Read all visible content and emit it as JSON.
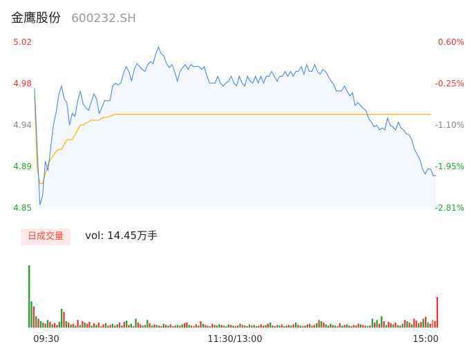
{
  "header": {
    "stock_name": "金鹰股份",
    "stock_code": "600232.SH"
  },
  "volume_panel": {
    "badge": "日成交量",
    "summary": "vol: 14.45万手"
  },
  "colors": {
    "price_line": "#4d88f0",
    "avg_line": "#f7b500",
    "up": "#e83a3a",
    "down": "#2aa135",
    "neutral": "#888888",
    "area_fill": "#f4f7fd"
  },
  "chart_data": [
    {
      "type": "line",
      "ylim": [
        4.85,
        5.02
      ],
      "y_tick_labels": [
        "5.02",
        "4.98",
        "4.94",
        "4.89",
        "4.85"
      ],
      "y_right_tick_labels": [
        "0.60%",
        "-0.25%",
        "-1.10%",
        "-1.95%",
        "-2.81%"
      ],
      "x_tick_labels": [
        "09:30",
        "11:30/13:00",
        "15:00"
      ],
      "series": [
        {
          "values": [
            4.973,
            4.91,
            4.853,
            4.863,
            4.898,
            4.888,
            4.912,
            4.935,
            4.948,
            4.966,
            4.975,
            4.962,
            4.958,
            4.935,
            4.947,
            4.944,
            4.96,
            4.97,
            4.957,
            4.953,
            4.95,
            4.958,
            4.967,
            4.962,
            4.947,
            4.953,
            4.96,
            4.96,
            4.96,
            4.975,
            4.978,
            4.976,
            4.978,
            4.988,
            4.995,
            4.99,
            4.98,
            4.992,
            4.998,
            4.995,
            4.992,
            4.99,
            4.997,
            5.0,
            4.998,
            5.008,
            5.015,
            5.008,
            5.006,
            4.998,
            4.994,
            4.997,
            4.99,
            4.98,
            4.99,
            4.994,
            4.997,
            4.992,
            4.997,
            4.995,
            4.995,
            4.995,
            4.992,
            4.995,
            4.985,
            4.978,
            4.978,
            4.978,
            4.985,
            4.978,
            4.975,
            4.978,
            4.98,
            4.985,
            4.978,
            4.975,
            4.985,
            4.978,
            4.975,
            4.985,
            4.98,
            4.978,
            4.985,
            4.978,
            4.985,
            4.978,
            4.985,
            4.985,
            4.99,
            4.985,
            4.98,
            4.985,
            4.985,
            4.99,
            4.985,
            4.99,
            4.985,
            4.99,
            4.99,
            4.995,
            4.987,
            4.997,
            4.99,
            4.99,
            4.997,
            4.99,
            4.987,
            4.992,
            4.99,
            4.985,
            4.98,
            4.977,
            4.97,
            4.97,
            4.97,
            4.975,
            4.97,
            4.965,
            4.968,
            4.955,
            4.958,
            4.955,
            4.952,
            4.95,
            4.942,
            4.938,
            4.933,
            4.935,
            4.93,
            4.932,
            4.93,
            4.942,
            4.935,
            4.933,
            4.93,
            4.938,
            4.932,
            4.93,
            4.926,
            4.925,
            4.92,
            4.91,
            4.905,
            4.9,
            4.89,
            4.885,
            4.89,
            4.89,
            4.883,
            4.883
          ],
          "color": "#4d88f0"
        },
        {
          "values": [
            4.965,
            4.89,
            4.875,
            4.875,
            4.885,
            4.895,
            4.9,
            4.904,
            4.908,
            4.91,
            4.91,
            4.915,
            4.92,
            4.92,
            4.92,
            4.925,
            4.93,
            4.935,
            4.935,
            4.937,
            4.938,
            4.94,
            4.94,
            4.94,
            4.94,
            4.942,
            4.943,
            4.943,
            4.944,
            4.945,
            4.946,
            4.946,
            4.946,
            4.946,
            4.946,
            4.946,
            4.946,
            4.946,
            4.946,
            4.946,
            4.946,
            4.946,
            4.946,
            4.946,
            4.946,
            4.946,
            4.946,
            4.946,
            4.946,
            4.946,
            4.946,
            4.946,
            4.946,
            4.946,
            4.946,
            4.946,
            4.946,
            4.946,
            4.946,
            4.946,
            4.946,
            4.946,
            4.946,
            4.946,
            4.946,
            4.946,
            4.946,
            4.946,
            4.946,
            4.946,
            4.946,
            4.946,
            4.946,
            4.946,
            4.946,
            4.946,
            4.946,
            4.946,
            4.946,
            4.946,
            4.946,
            4.946,
            4.946,
            4.946,
            4.946,
            4.946,
            4.946,
            4.946,
            4.946,
            4.946,
            4.946,
            4.946,
            4.946,
            4.946,
            4.946,
            4.946,
            4.946,
            4.946,
            4.946,
            4.946,
            4.946,
            4.946,
            4.946,
            4.946,
            4.946,
            4.946,
            4.946,
            4.946,
            4.946,
            4.946,
            4.946,
            4.946,
            4.946,
            4.946,
            4.946,
            4.946,
            4.946,
            4.946,
            4.946,
            4.946,
            4.946,
            4.946,
            4.946,
            4.946,
            4.946,
            4.946,
            4.946,
            4.946,
            4.946,
            4.946,
            4.946,
            4.946,
            4.946,
            4.946,
            4.946,
            4.946,
            4.946,
            4.946,
            4.946,
            4.946,
            4.946,
            4.946,
            4.946,
            4.946,
            4.946,
            4.946,
            4.946,
            4.946
          ],
          "color": "#f7b500"
        }
      ]
    },
    {
      "type": "bar",
      "ylim": [
        0,
        100
      ],
      "values": [
        100,
        42,
        34,
        18,
        14,
        10,
        8,
        6,
        12,
        9,
        5,
        7,
        4,
        9,
        30,
        25,
        10,
        8,
        5,
        6,
        3,
        12,
        4,
        10,
        8,
        6,
        9,
        3,
        7,
        4,
        8,
        2,
        5,
        7,
        3,
        4,
        6,
        3,
        5,
        8,
        3,
        9,
        11,
        4,
        6,
        2,
        14,
        8,
        5,
        3,
        4,
        12,
        7,
        3,
        5,
        4,
        3,
        2,
        6,
        4,
        3,
        5,
        2,
        3,
        4,
        3,
        5,
        7,
        8,
        4,
        3,
        2,
        5,
        3,
        10,
        6,
        4,
        3,
        2,
        6,
        4,
        3,
        5,
        4,
        3,
        2,
        5,
        4,
        3,
        2,
        3,
        6,
        4,
        3,
        2,
        5,
        3,
        4,
        2,
        3,
        5,
        3,
        4,
        6,
        8,
        3,
        2,
        4,
        3,
        5,
        2,
        3,
        4,
        3,
        5,
        8,
        4,
        3,
        2,
        3,
        5,
        6,
        3,
        4,
        7,
        12,
        10,
        8,
        5,
        3,
        6,
        4,
        3,
        2,
        7,
        3,
        4,
        5,
        3,
        2,
        4,
        3,
        6,
        5,
        4,
        3,
        2,
        3,
        14,
        8,
        12,
        6,
        18,
        10,
        4,
        9,
        7,
        5,
        8,
        4,
        3,
        6,
        12,
        10,
        8,
        5,
        14,
        11,
        7,
        9,
        14,
        17,
        8,
        6,
        12,
        10,
        49
      ],
      "colors": [
        "#2aa135",
        "#2aa135",
        "#e83a3a",
        "#2aa135",
        "#e83a3a",
        "#2aa135",
        "#2aa135",
        "#e83a3a",
        "#2aa135",
        "#e83a3a",
        "#2aa135",
        "#e83a3a",
        "#e83a3a",
        "#2aa135",
        "#2aa135",
        "#e83a3a",
        "#2aa135",
        "#e83a3a",
        "#2aa135",
        "#e83a3a",
        "#2aa135",
        "#e83a3a",
        "#2aa135",
        "#e83a3a",
        "#2aa135",
        "#e83a3a",
        "#e83a3a",
        "#2aa135",
        "#e83a3a",
        "#2aa135",
        "#e83a3a",
        "#2aa135",
        "#e83a3a",
        "#2aa135",
        "#e83a3a",
        "#e83a3a",
        "#2aa135",
        "#e83a3a",
        "#2aa135",
        "#e83a3a",
        "#2aa135",
        "#e83a3a",
        "#2aa135",
        "#e83a3a",
        "#2aa135",
        "#e83a3a",
        "#2aa135",
        "#e83a3a",
        "#e83a3a",
        "#2aa135",
        "#e83a3a",
        "#2aa135",
        "#e83a3a",
        "#2aa135",
        "#e83a3a",
        "#2aa135",
        "#e83a3a",
        "#e83a3a",
        "#2aa135",
        "#e83a3a",
        "#2aa135",
        "#e83a3a",
        "#2aa135",
        "#e83a3a",
        "#2aa135",
        "#e83a3a",
        "#2aa135",
        "#e83a3a",
        "#e83a3a",
        "#2aa135",
        "#e83a3a",
        "#2aa135",
        "#e83a3a",
        "#2aa135",
        "#e83a3a",
        "#2aa135",
        "#e83a3a",
        "#2aa135",
        "#e83a3a",
        "#e83a3a",
        "#2aa135",
        "#e83a3a",
        "#2aa135",
        "#e83a3a",
        "#2aa135",
        "#e83a3a",
        "#2aa135",
        "#e83a3a",
        "#2aa135",
        "#e83a3a",
        "#e83a3a",
        "#2aa135",
        "#e83a3a",
        "#2aa135",
        "#e83a3a",
        "#2aa135",
        "#e83a3a",
        "#2aa135",
        "#e83a3a",
        "#2aa135",
        "#e83a3a",
        "#e83a3a",
        "#2aa135",
        "#e83a3a",
        "#2aa135",
        "#e83a3a",
        "#2aa135",
        "#e83a3a",
        "#2aa135",
        "#e83a3a",
        "#2aa135",
        "#e83a3a",
        "#e83a3a",
        "#2aa135",
        "#e83a3a",
        "#2aa135",
        "#e83a3a",
        "#2aa135",
        "#e83a3a",
        "#2aa135",
        "#e83a3a",
        "#2aa135",
        "#e83a3a",
        "#e83a3a",
        "#2aa135",
        "#e83a3a",
        "#2aa135",
        "#e83a3a",
        "#2aa135",
        "#e83a3a",
        "#2aa135",
        "#e83a3a",
        "#2aa135",
        "#e83a3a",
        "#e83a3a",
        "#2aa135",
        "#e83a3a",
        "#2aa135",
        "#e83a3a",
        "#2aa135",
        "#e83a3a",
        "#2aa135",
        "#e83a3a",
        "#2aa135",
        "#e83a3a",
        "#e83a3a",
        "#2aa135",
        "#e83a3a",
        "#2aa135",
        "#e83a3a",
        "#2aa135",
        "#e83a3a",
        "#2aa135",
        "#e83a3a",
        "#2aa135",
        "#e83a3a",
        "#e83a3a",
        "#2aa135",
        "#e83a3a",
        "#2aa135",
        "#e83a3a",
        "#2aa135",
        "#e83a3a",
        "#2aa135",
        "#e83a3a",
        "#2aa135",
        "#e83a3a",
        "#e83a3a",
        "#2aa135",
        "#e83a3a",
        "#2aa135",
        "#e83a3a",
        "#2aa135",
        "#e83a3a",
        "#e87a7a"
      ]
    }
  ]
}
